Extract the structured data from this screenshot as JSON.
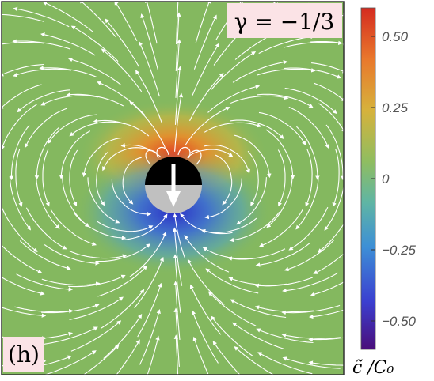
{
  "panel_label": "(h)",
  "parameter_label": "γ = −1/3",
  "colorbar": {
    "label": "c̃ /C₀",
    "ticks": [
      {
        "value": 0.5,
        "text": "0.50"
      },
      {
        "value": 0.25,
        "text": "0.25"
      },
      {
        "value": 0,
        "text": "0"
      },
      {
        "value": -0.25,
        "text": "−0.25"
      },
      {
        "value": -0.5,
        "text": "−0.50"
      }
    ],
    "range": [
      -0.6,
      0.6
    ],
    "colors": [
      "#4a0e7a",
      "#3b3fd0",
      "#3d8fd6",
      "#5fb5a4",
      "#8fbd60",
      "#d6b23c",
      "#e9782c",
      "#d42b20"
    ]
  },
  "colors": {
    "background_field": "#84b85f",
    "streamline": "#ffffff",
    "particle_top": "#000000",
    "particle_bottom": "#c0c0c0",
    "label_box": "#fbe3e6"
  }
}
